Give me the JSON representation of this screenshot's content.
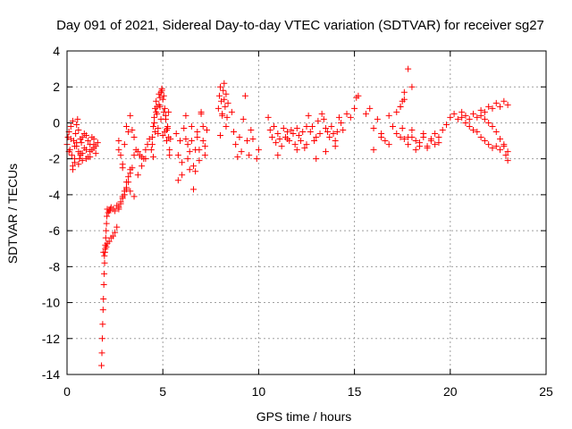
{
  "chart_data": {
    "type": "scatter",
    "title": "Day 091 of 2021, Sidereal Day-to-day VTEC variation (SDTVAR) for receiver sg27",
    "xlabel": "GPS time / hours",
    "ylabel": "SDTVAR / TECUs",
    "xlim": [
      0,
      25
    ],
    "ylim": [
      -14,
      4
    ],
    "xticks": [
      0,
      5,
      10,
      15,
      20,
      25
    ],
    "yticks": [
      -14,
      -12,
      -10,
      -8,
      -6,
      -4,
      -2,
      0,
      2,
      4
    ],
    "grid": true,
    "marker": "plus",
    "color": "#ff0000",
    "series": [
      {
        "name": "SDTVAR",
        "x": [
          0.0,
          0.05,
          0.1,
          0.15,
          0.2,
          0.25,
          0.3,
          0.35,
          0.4,
          0.45,
          0.5,
          0.55,
          0.6,
          0.65,
          0.7,
          0.75,
          0.8,
          0.9,
          1.0,
          1.1,
          1.2,
          1.3,
          1.4,
          1.5,
          1.6,
          0.1,
          0.2,
          0.3,
          0.4,
          0.5,
          0.6,
          0.7,
          0.8,
          0.9,
          1.0,
          1.1,
          1.2,
          1.3,
          1.4,
          1.5,
          0.3,
          0.4,
          0.5,
          0.6,
          0.7,
          0.8,
          1.0,
          1.2,
          1.4,
          1.8,
          1.82,
          1.84,
          1.86,
          1.88,
          1.9,
          1.92,
          1.94,
          1.96,
          1.98,
          2.0,
          2.02,
          2.04,
          2.06,
          2.08,
          2.1,
          2.15,
          2.2,
          2.25,
          2.3,
          2.4,
          2.5,
          2.6,
          2.7,
          2.8,
          2.9,
          3.0,
          3.1,
          3.2,
          3.3,
          3.4,
          3.5,
          1.9,
          1.95,
          2.0,
          2.05,
          2.1,
          2.2,
          2.3,
          2.4,
          2.5,
          2.6,
          2.7,
          2.8,
          2.9,
          3.0,
          3.1,
          3.2,
          3.3,
          2.7,
          2.8,
          2.9,
          3.0,
          3.1,
          3.2,
          3.3,
          3.4,
          3.5,
          3.6,
          3.7,
          3.8,
          3.9,
          4.0,
          4.1,
          4.2,
          4.3,
          2.7,
          2.9,
          3.1,
          3.3,
          3.5,
          3.7,
          3.9,
          4.1,
          4.4,
          4.45,
          4.5,
          4.55,
          4.6,
          4.65,
          4.7,
          4.75,
          4.8,
          4.85,
          4.9,
          4.95,
          5.0,
          5.05,
          5.1,
          5.15,
          5.2,
          5.25,
          5.3,
          5.35,
          5.4,
          4.45,
          4.55,
          4.65,
          4.75,
          4.85,
          4.95,
          5.05,
          5.15,
          5.25,
          5.35,
          4.5,
          4.6,
          4.7,
          4.8,
          4.9,
          5.0,
          5.1,
          5.2,
          5.3,
          5.7,
          5.8,
          5.9,
          6.0,
          6.1,
          6.2,
          6.3,
          6.4,
          6.5,
          6.6,
          6.7,
          6.8,
          6.9,
          7.0,
          7.1,
          7.2,
          7.3,
          5.8,
          6.0,
          6.2,
          6.4,
          6.6,
          6.8,
          7.0,
          7.2,
          6.3,
          6.5,
          6.7,
          6.9,
          7.1,
          7.9,
          7.95,
          8.0,
          8.05,
          8.1,
          8.15,
          8.2,
          8.25,
          8.3,
          8.35,
          8.4,
          8.0,
          8.1,
          8.2,
          8.3,
          8.6,
          8.7,
          8.8,
          8.9,
          9.0,
          9.1,
          9.2,
          9.3,
          9.4,
          9.5,
          9.6,
          9.7,
          9.9,
          10.0,
          10.5,
          10.6,
          10.7,
          10.8,
          10.9,
          11.0,
          11.1,
          11.2,
          11.3,
          11.4,
          11.5,
          11.6,
          11.7,
          11.8,
          11.9,
          12.0,
          12.1,
          12.2,
          12.3,
          12.4,
          12.5,
          12.6,
          12.7,
          12.8,
          12.9,
          13.0,
          13.1,
          13.2,
          13.3,
          13.4,
          13.5,
          13.6,
          13.7,
          13.8,
          13.9,
          14.0,
          14.1,
          14.2,
          14.3,
          14.4,
          14.6,
          14.8,
          15.0,
          15.1,
          15.2,
          11.0,
          11.5,
          12.0,
          12.5,
          13.0,
          13.5,
          14.0,
          15.6,
          15.8,
          16.0,
          16.2,
          16.4,
          16.6,
          16.8,
          17.0,
          17.2,
          17.4,
          17.6,
          17.8,
          18.0,
          16.0,
          16.4,
          16.8,
          17.2,
          17.4,
          17.5,
          17.4,
          17.5,
          17.6,
          17.8,
          18.0,
          18.2,
          18.4,
          18.6,
          18.8,
          19.0,
          19.2,
          19.4,
          19.6,
          19.8,
          20.0,
          20.2,
          20.4,
          20.6,
          20.8,
          21.0,
          21.2,
          21.4,
          21.6,
          21.8,
          22.0,
          22.2,
          22.4,
          22.6,
          22.8,
          23.0,
          17.6,
          17.8,
          18.0,
          18.2,
          18.4,
          18.6,
          18.8,
          19.0,
          19.2,
          19.4,
          20.6,
          20.8,
          21.0,
          21.2,
          21.4,
          21.6,
          21.8,
          22.0,
          22.2,
          22.4,
          22.6,
          22.8,
          22.9,
          23.0,
          21.6,
          21.8,
          22.0,
          22.2,
          22.4,
          22.6,
          22.8,
          23.0
        ],
        "y": [
          -1.2,
          -0.8,
          -0.5,
          -1.5,
          -0.2,
          -1.8,
          0.1,
          -1.0,
          -2.2,
          -0.6,
          -1.3,
          0.2,
          -1.6,
          -2.0,
          -0.9,
          -1.1,
          -1.7,
          -1.4,
          -0.7,
          -1.9,
          -1.2,
          -1.5,
          -0.9,
          -1.3,
          -1.1,
          -1.6,
          -0.9,
          -2.4,
          -2.0,
          -1.1,
          -0.4,
          -1.8,
          -2.1,
          -0.6,
          -1.5,
          -1.0,
          -1.9,
          -0.8,
          -1.4,
          -1.7,
          -2.6,
          -1.3,
          -0.1,
          -2.3,
          -1.7,
          -0.8,
          -2.0,
          -1.6,
          -1.2,
          -13.5,
          -12.8,
          -12.0,
          -11.2,
          -10.4,
          -9.8,
          -9.0,
          -8.4,
          -7.8,
          -7.2,
          -6.8,
          -6.4,
          -6.0,
          -5.6,
          -5.2,
          -4.8,
          -5.0,
          -4.9,
          -4.8,
          -4.7,
          -4.8,
          -4.9,
          -4.6,
          -4.7,
          -4.5,
          -4.2,
          -4.0,
          -3.7,
          -3.3,
          -2.8,
          -2.5,
          -1.8,
          -7.2,
          -7.4,
          -7.0,
          -6.9,
          -6.7,
          -6.6,
          -6.4,
          -6.3,
          -6.1,
          -5.8,
          -4.8,
          -4.4,
          -4.1,
          -3.8,
          -3.6,
          -3.0,
          -2.6,
          -1.0,
          -1.8,
          -2.3,
          -1.2,
          -0.2,
          -0.5,
          0.4,
          -0.4,
          -0.8,
          -1.5,
          -1.6,
          -1.8,
          -1.9,
          -2.0,
          -1.5,
          -1.2,
          -0.9,
          -1.5,
          -2.5,
          -3.3,
          -3.8,
          -4.1,
          -2.9,
          -2.4,
          -2.0,
          -1.5,
          -0.8,
          -0.2,
          0.3,
          0.8,
          1.2,
          0.5,
          -0.3,
          1.0,
          1.4,
          1.7,
          1.9,
          1.3,
          0.6,
          -0.5,
          0.2,
          -1.0,
          -0.3,
          -0.8,
          -1.5,
          -0.9,
          -1.2,
          0.0,
          0.6,
          -0.6,
          0.9,
          1.8,
          1.5,
          0.4,
          -0.2,
          -1.8,
          -1.9,
          -0.5,
          0.9,
          1.6,
          0.2,
          -0.7,
          0.8,
          -0.4,
          0.6,
          -0.6,
          -1.8,
          -1.0,
          -2.2,
          -0.3,
          0.4,
          -1.2,
          -2.6,
          -0.2,
          -3.7,
          -1.5,
          -0.8,
          -2.1,
          0.5,
          -1.0,
          -1.8,
          -0.4,
          -3.2,
          -2.9,
          -0.9,
          -1.6,
          -2.4,
          -0.5,
          0.6,
          -1.3,
          -2.0,
          -1.0,
          -2.7,
          -1.5,
          -0.2,
          0.8,
          1.5,
          2.0,
          1.2,
          0.4,
          1.8,
          2.2,
          0.9,
          1.6,
          0.3,
          1.1,
          -0.7,
          0.5,
          1.3,
          -0.2,
          0.6,
          -0.5,
          -1.2,
          -1.9,
          -0.8,
          -1.6,
          0.2,
          1.5,
          -1.0,
          -1.8,
          -0.4,
          -0.9,
          -2.0,
          -1.5,
          0.3,
          -0.4,
          -0.8,
          -0.2,
          -1.1,
          -0.6,
          -0.9,
          -1.3,
          -0.3,
          -0.8,
          -0.5,
          -1.0,
          -0.4,
          -0.6,
          -1.2,
          -0.3,
          -0.7,
          -1.0,
          -0.5,
          -1.4,
          -0.2,
          0.4,
          -0.5,
          -0.2,
          -1.0,
          -0.8,
          0.1,
          -0.6,
          0.5,
          0.2,
          -0.3,
          -0.5,
          -0.8,
          -0.2,
          -0.6,
          -1.0,
          -0.5,
          0.3,
          0.0,
          -0.4,
          0.5,
          0.3,
          0.8,
          1.4,
          1.5,
          -1.8,
          -0.9,
          -1.5,
          -1.2,
          -2.0,
          -1.6,
          -1.3,
          0.5,
          0.8,
          -0.3,
          0.2,
          -0.6,
          -1.0,
          0.4,
          -0.2,
          0.6,
          0.9,
          1.3,
          -0.8,
          -0.4,
          -1.5,
          -0.8,
          -1.2,
          -0.6,
          0.9,
          1.2,
          -0.8,
          -0.3,
          -0.9,
          -1.2,
          -0.8,
          -1.0,
          -1.1,
          -0.8,
          -1.3,
          -1.0,
          -0.6,
          -1.1,
          -0.4,
          -0.1,
          0.3,
          0.5,
          0.2,
          0.6,
          0.4,
          0.2,
          0.5,
          0.3,
          0.7,
          0.6,
          0.9,
          0.8,
          1.1,
          0.9,
          1.2,
          1.0,
          1.7,
          3.0,
          2.0,
          -1.5,
          -1.3,
          -0.6,
          -1.4,
          -0.9,
          -1.2,
          -0.8,
          0.3,
          0.0,
          -0.2,
          -0.4,
          -0.5,
          -0.8,
          -1.0,
          -1.2,
          -1.4,
          -1.3,
          -1.5,
          -1.3,
          -1.8,
          -2.1,
          0.4,
          0.2,
          0.0,
          -0.2,
          -0.5,
          -0.9,
          -1.2,
          -1.6
        ]
      }
    ]
  }
}
